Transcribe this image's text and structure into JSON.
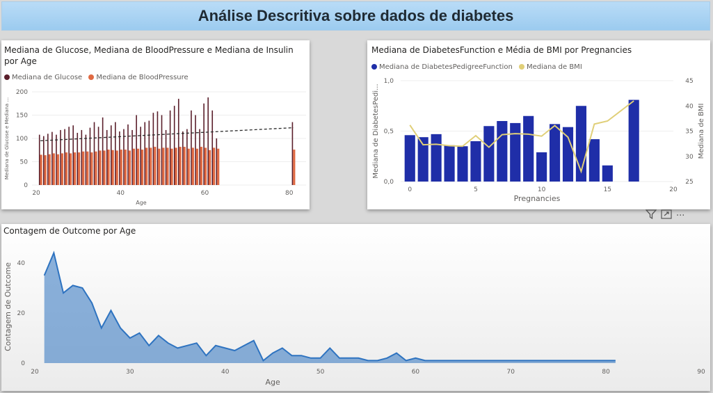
{
  "page_title": "Análise Descritiva sobre dados de diabetes",
  "toolbar": {
    "filter_icon": "filter-icon",
    "focus_icon": "focus-mode-icon",
    "more_label": "···"
  },
  "chart_data": [
    {
      "type": "bar",
      "title": "Mediana de Glucose, Mediana de BloodPressure e Mediana de Insulin por Age",
      "xlabel": "Age",
      "ylabel": "Mediana de Glucose e Mediana ...",
      "legend": "top-left",
      "xlim": [
        19,
        84
      ],
      "ylim": [
        0,
        200
      ],
      "xticks": [
        20,
        40,
        60,
        80
      ],
      "yticks": [
        0,
        50,
        100,
        150,
        200
      ],
      "x": [
        21,
        22,
        23,
        24,
        25,
        26,
        27,
        28,
        29,
        30,
        31,
        32,
        33,
        34,
        35,
        36,
        37,
        38,
        39,
        40,
        41,
        42,
        43,
        44,
        45,
        46,
        47,
        48,
        49,
        50,
        51,
        52,
        53,
        54,
        55,
        56,
        57,
        58,
        59,
        60,
        61,
        62,
        63,
        81
      ],
      "series": [
        {
          "name": "Mediana de Glucose",
          "color": "#5a1f2b",
          "values": [
            108,
            105,
            110,
            114,
            108,
            118,
            120,
            125,
            128,
            112,
            118,
            108,
            123,
            135,
            125,
            145,
            118,
            128,
            135,
            115,
            120,
            130,
            118,
            150,
            125,
            135,
            138,
            155,
            158,
            150,
            118,
            160,
            170,
            185,
            115,
            120,
            160,
            150,
            120,
            175,
            188,
            160,
            100,
            135
          ]
        },
        {
          "name": "Mediana de BloodPressure",
          "color": "#e06a43",
          "values": [
            65,
            64,
            66,
            68,
            66,
            68,
            70,
            68,
            70,
            70,
            72,
            72,
            70,
            72,
            74,
            74,
            76,
            75,
            74,
            76,
            76,
            74,
            78,
            78,
            76,
            80,
            80,
            82,
            78,
            80,
            80,
            78,
            80,
            82,
            82,
            78,
            80,
            78,
            82,
            80,
            75,
            80,
            78,
            76
          ]
        },
        {
          "name": "Mediana de Insulin",
          "color": "#2b2b2b",
          "style": "dashed",
          "x": [
            21,
            81
          ],
          "values": [
            95,
            123
          ]
        }
      ]
    },
    {
      "type": "bar",
      "title": "Mediana de DiabetesFunction e Média de BMI por Pregnancies",
      "xlabel": "Pregnancies",
      "ylabel": "Mediana de DiabetesPedi...",
      "y2label": "Mediana de BMI",
      "legend": "top-left",
      "xlim": [
        -0.7,
        20
      ],
      "ylim": [
        0,
        1.0
      ],
      "y2lim": [
        25,
        45
      ],
      "xticks": [
        0,
        5,
        10,
        15,
        20
      ],
      "yticks": [
        "0,0",
        "0,5",
        "1,0"
      ],
      "y2ticks": [
        25,
        30,
        35,
        40,
        45
      ],
      "x": [
        0,
        1,
        2,
        3,
        4,
        5,
        6,
        7,
        8,
        9,
        10,
        11,
        12,
        13,
        14,
        15,
        17
      ],
      "series": [
        {
          "name": "Mediana de DiabetesPedigreeFunction",
          "color": "#1f2ea8",
          "values": [
            0.46,
            0.44,
            0.47,
            0.36,
            0.35,
            0.4,
            0.55,
            0.6,
            0.58,
            0.65,
            0.29,
            0.57,
            0.54,
            0.75,
            0.42,
            0.16,
            0.81
          ]
        },
        {
          "name": "Mediana de BMI",
          "color": "#e0cf78",
          "axis": "y2",
          "values": [
            36.2,
            32.3,
            32.4,
            32.1,
            32.0,
            34.1,
            31.8,
            34.3,
            34.5,
            34.4,
            34.0,
            36.1,
            33.8,
            27.0,
            36.4,
            37.0,
            41.0
          ]
        }
      ]
    },
    {
      "type": "area",
      "title": "Contagem de Outcome por Age",
      "xlabel": "Age",
      "ylabel": "Contagem de Outcome",
      "xlim": [
        20,
        90
      ],
      "ylim": [
        0,
        45
      ],
      "xticks": [
        20,
        30,
        40,
        50,
        60,
        70,
        80,
        90
      ],
      "yticks": [
        0,
        20,
        40
      ],
      "color": "#2e73c0",
      "x": [
        21,
        22,
        23,
        24,
        25,
        26,
        27,
        28,
        29,
        30,
        31,
        32,
        33,
        34,
        35,
        36,
        37,
        38,
        39,
        40,
        41,
        42,
        43,
        44,
        45,
        46,
        47,
        48,
        49,
        50,
        51,
        52,
        53,
        54,
        55,
        56,
        57,
        58,
        59,
        60,
        61,
        62,
        63,
        64,
        65,
        66,
        67,
        68,
        69,
        70,
        72,
        81
      ],
      "values": [
        35,
        44,
        28,
        31,
        30,
        24,
        14,
        21,
        14,
        10,
        12,
        7,
        11,
        8,
        6,
        7,
        8,
        3,
        7,
        6,
        5,
        7,
        9,
        1,
        4,
        6,
        3,
        3,
        2,
        2,
        6,
        2,
        2,
        2,
        1,
        1,
        2,
        4,
        1,
        2,
        1,
        1,
        1,
        1,
        1,
        1,
        1,
        1,
        1,
        1,
        1,
        1
      ]
    }
  ]
}
